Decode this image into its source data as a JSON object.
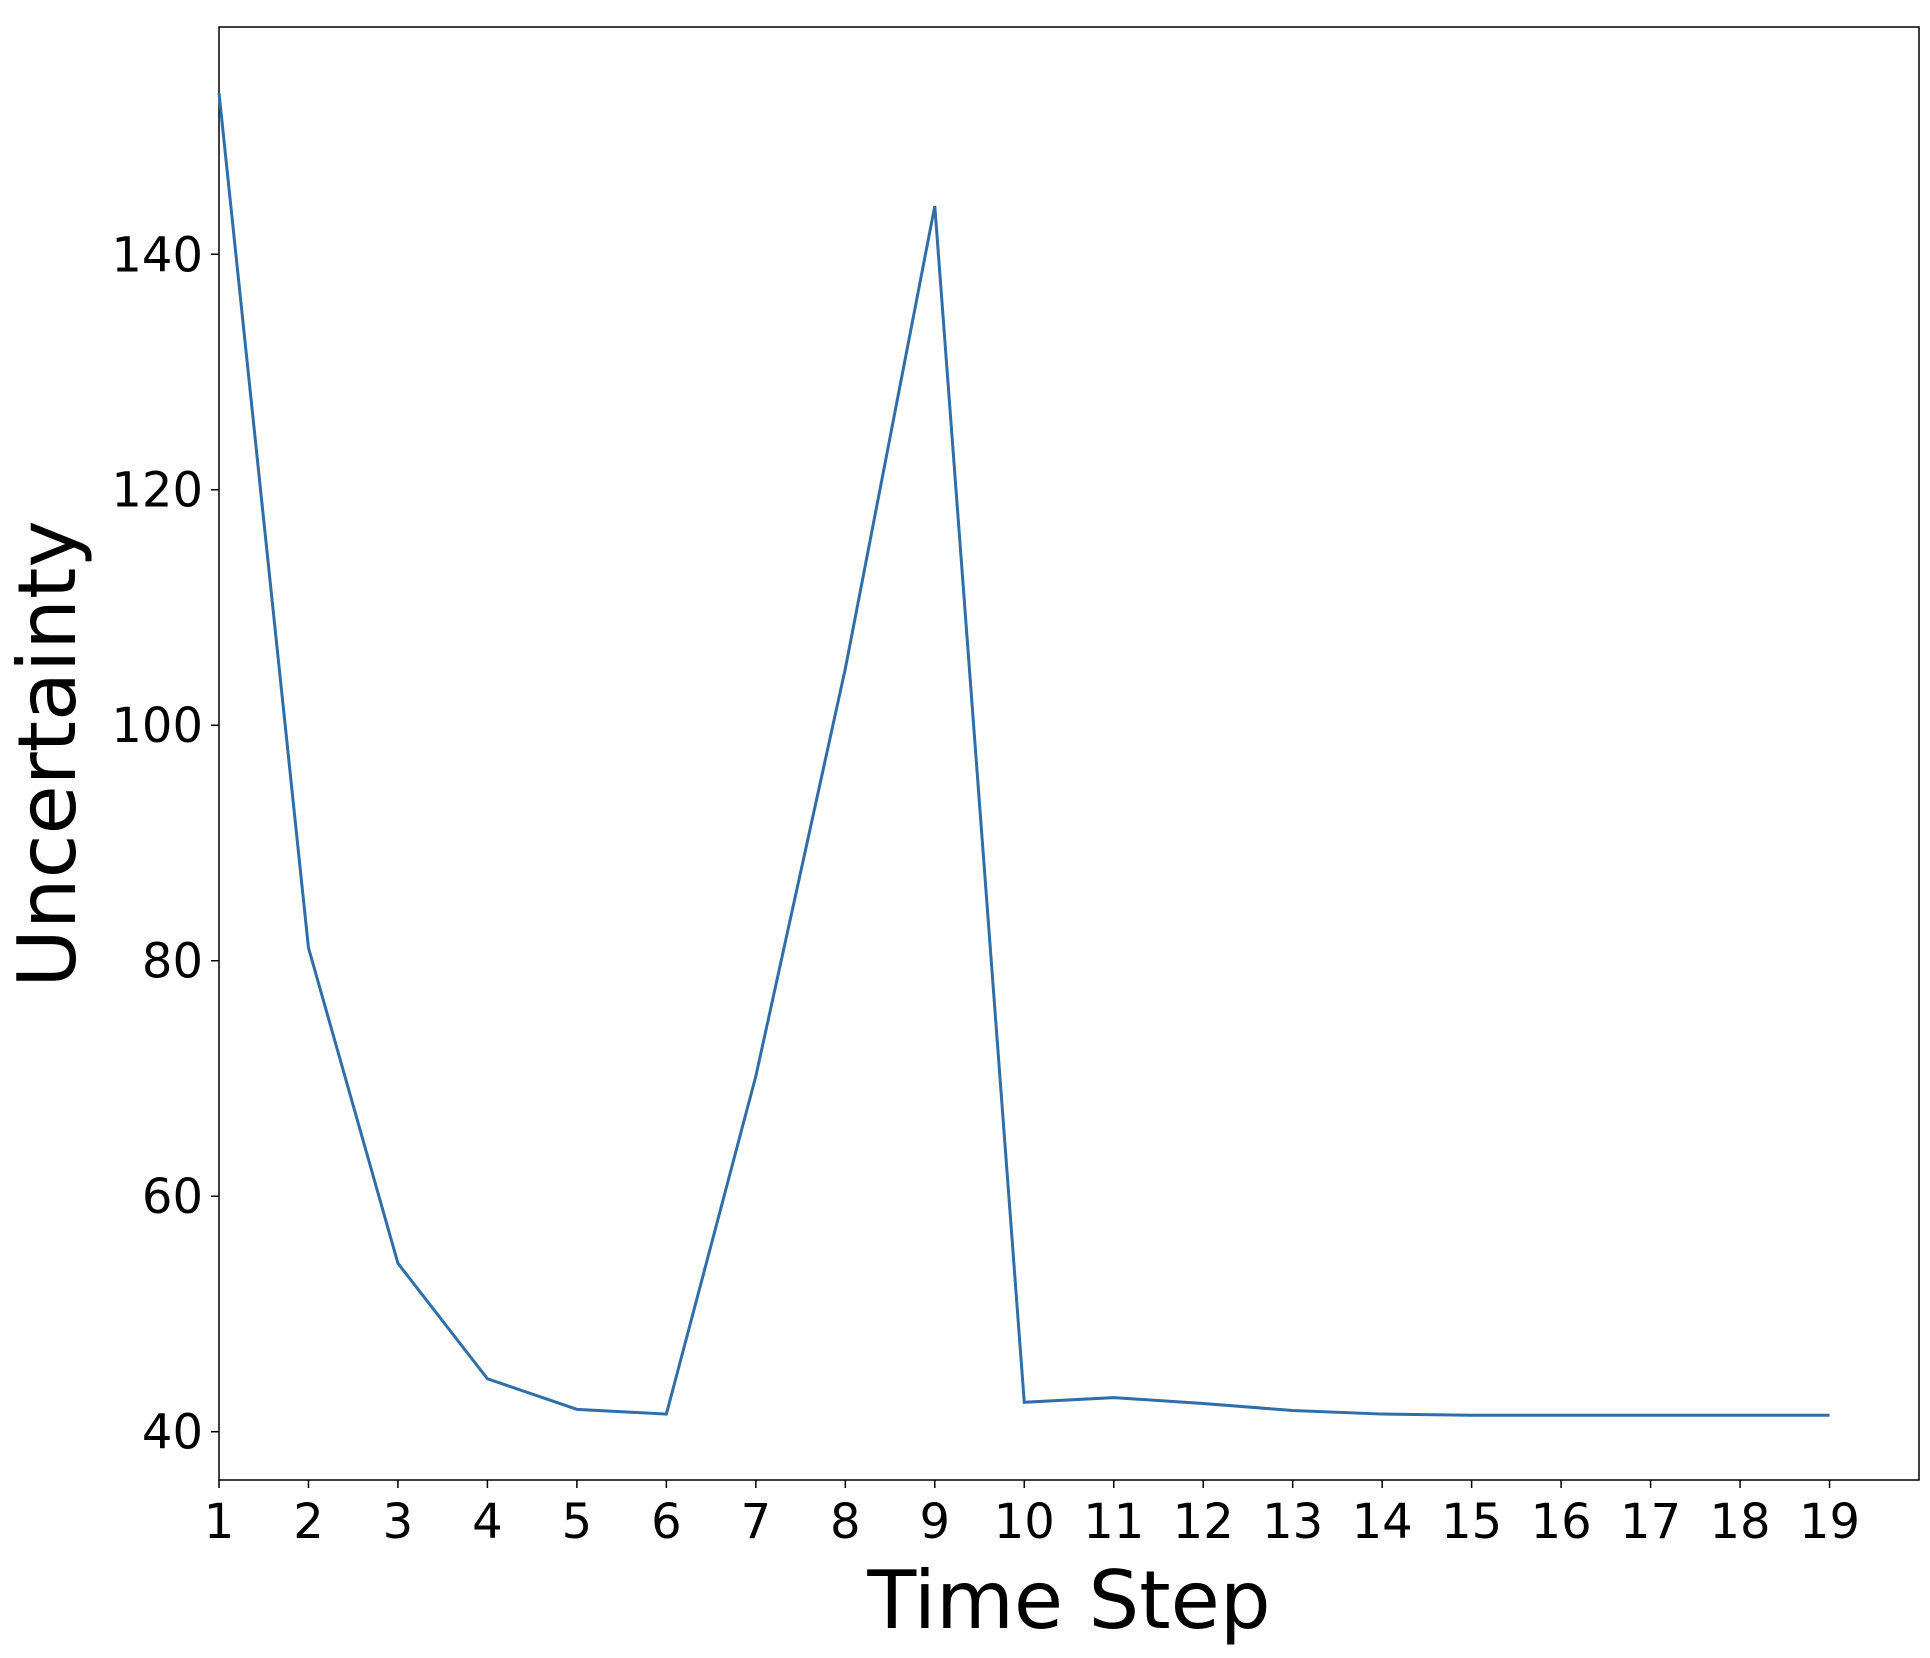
{
  "chart_data": {
    "type": "line",
    "x_label": "Time Step",
    "y_label": "Uncertainty",
    "x": [
      1,
      2,
      3,
      4,
      5,
      6,
      7,
      8,
      9,
      10,
      11,
      12,
      13,
      14,
      15,
      16,
      17,
      18,
      19
    ],
    "series": [
      {
        "color": "#2f6ea6",
        "values": [
          153.7,
          81.1,
          54.3,
          44.5,
          41.9,
          41.5,
          70.2,
          104.8,
          144.1,
          42.5,
          42.9,
          42.4,
          41.8,
          41.5,
          41.4,
          41.4,
          41.4,
          41.4,
          41.4
        ]
      }
    ],
    "xlim": [
      1,
      20
    ],
    "ylim": [
      35.9,
      159.3
    ],
    "xticks": [
      1,
      2,
      3,
      4,
      5,
      6,
      7,
      8,
      9,
      10,
      11,
      12,
      13,
      14,
      15,
      16,
      17,
      18,
      19
    ],
    "yticks": [
      40,
      60,
      80,
      100,
      120,
      140
    ]
  }
}
